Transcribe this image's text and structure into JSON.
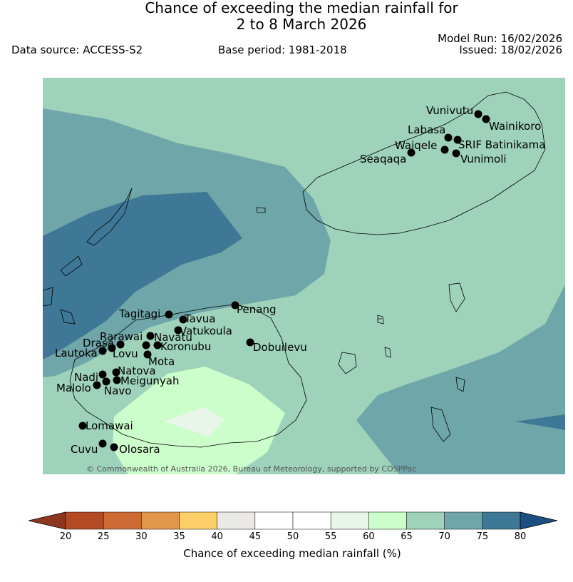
{
  "title_line1": "Chance of exceeding the median rainfall for",
  "title_line2": "2 to 8 March 2026",
  "data_source": "Data source: ACCESS-S2",
  "base_period": "Base period: 1981-2018",
  "model_run": "Model Run: 16/02/2026",
  "issued": "Issued: 18/02/2026",
  "copyright": "© Commonwealth of Australia 2026, Bureau of Meteorology, supported by COSPPac",
  "colorbar": {
    "label": "Chance of exceeding median rainfall (%)",
    "ticks": [
      "20",
      "25",
      "30",
      "35",
      "40",
      "45",
      "50",
      "55",
      "60",
      "65",
      "70",
      "75",
      "80"
    ],
    "colors": [
      "#b44a24",
      "#cf6a35",
      "#e2964c",
      "#fdcf68",
      "#ebe9e5",
      "#ffffff",
      "#ffffff",
      "#eaf5ea",
      "#ccfecb",
      "#9ed2ba",
      "#6fa6a9",
      "#3f7897"
    ],
    "under_color": "#8e3520",
    "over_color": "#1b4f82"
  },
  "stations": [
    {
      "name": "Vunivutu"
    },
    {
      "name": "Wainikoro"
    },
    {
      "name": "Labasa"
    },
    {
      "name": "SRIF Batinikama"
    },
    {
      "name": "Waiqele"
    },
    {
      "name": "Seaqaqa"
    },
    {
      "name": "Vunimoli"
    },
    {
      "name": "Tagitagi"
    },
    {
      "name": "Tavua"
    },
    {
      "name": "Penang"
    },
    {
      "name": "Vatukoula"
    },
    {
      "name": "Rarawai"
    },
    {
      "name": "Navatu"
    },
    {
      "name": "Drasa"
    },
    {
      "name": "Koronubu"
    },
    {
      "name": "Lautoka"
    },
    {
      "name": "Lovu"
    },
    {
      "name": "Dobuilevu"
    },
    {
      "name": "Mota"
    },
    {
      "name": "Natova"
    },
    {
      "name": "Nadi"
    },
    {
      "name": "Meigunyah"
    },
    {
      "name": "Malolo"
    },
    {
      "name": "Navo"
    },
    {
      "name": "Lomawai"
    },
    {
      "name": "Cuvu"
    },
    {
      "name": "Olosara"
    }
  ]
}
